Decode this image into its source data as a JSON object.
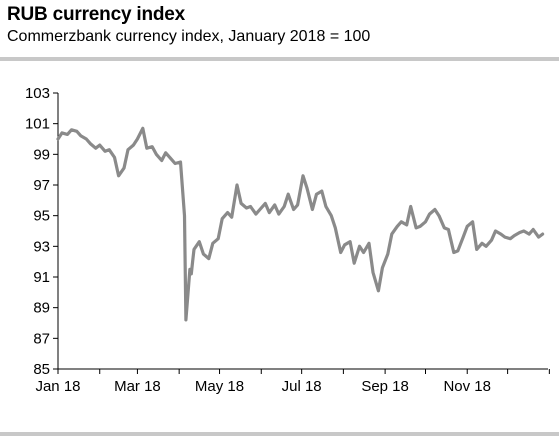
{
  "title": "RUB currency index",
  "subtitle": "Commerzbank currency index, January 2018 = 100",
  "chart_data": {
    "type": "line",
    "ylim": [
      85,
      103
    ],
    "yticks": [
      "85",
      "87",
      "89",
      "91",
      "93",
      "95",
      "97",
      "99",
      "101",
      "103"
    ],
    "xticks": [
      "Jan 18",
      "Mar 18",
      "May 18",
      "Jul 18",
      "Sep 18",
      "Nov 18"
    ],
    "line_color": "#8a8a8a",
    "grid": false,
    "series": [
      {
        "x": [
          "2018-01-01",
          "2018-01-04",
          "2018-01-08",
          "2018-01-11",
          "2018-01-15",
          "2018-01-18",
          "2018-01-22",
          "2018-01-25",
          "2018-01-29",
          "2018-02-01",
          "2018-02-05",
          "2018-02-08",
          "2018-02-12",
          "2018-02-15",
          "2018-02-19",
          "2018-02-22",
          "2018-02-26",
          "2018-03-01",
          "2018-03-05",
          "2018-03-08",
          "2018-03-12",
          "2018-03-15",
          "2018-03-19",
          "2018-03-22",
          "2018-03-26",
          "2018-03-29",
          "2018-04-02",
          "2018-04-05",
          "2018-04-06",
          "2018-04-09",
          "2018-04-10",
          "2018-04-11",
          "2018-04-12",
          "2018-04-16",
          "2018-04-19",
          "2018-04-23",
          "2018-04-26",
          "2018-04-30",
          "2018-05-03",
          "2018-05-07",
          "2018-05-10",
          "2018-05-14",
          "2018-05-17",
          "2018-05-21",
          "2018-05-24",
          "2018-05-28",
          "2018-05-31",
          "2018-06-04",
          "2018-06-07",
          "2018-06-11",
          "2018-06-14",
          "2018-06-18",
          "2018-06-21",
          "2018-06-25",
          "2018-06-28",
          "2018-07-02",
          "2018-07-05",
          "2018-07-09",
          "2018-07-12",
          "2018-07-16",
          "2018-07-19",
          "2018-07-23",
          "2018-07-26",
          "2018-07-30",
          "2018-08-02",
          "2018-08-06",
          "2018-08-09",
          "2018-08-13",
          "2018-08-16",
          "2018-08-20",
          "2018-08-23",
          "2018-08-27",
          "2018-08-30",
          "2018-09-03",
          "2018-09-06",
          "2018-09-10",
          "2018-09-13",
          "2018-09-17",
          "2018-09-20",
          "2018-09-24",
          "2018-09-27",
          "2018-10-01",
          "2018-10-04",
          "2018-10-08",
          "2018-10-11",
          "2018-10-15",
          "2018-10-18",
          "2018-10-22",
          "2018-10-25",
          "2018-10-29",
          "2018-11-01",
          "2018-11-05",
          "2018-11-08",
          "2018-11-12",
          "2018-11-15",
          "2018-11-19",
          "2018-11-22",
          "2018-11-26",
          "2018-11-29",
          "2018-12-03",
          "2018-12-06",
          "2018-12-10",
          "2018-12-13",
          "2018-12-17",
          "2018-12-20",
          "2018-12-24",
          "2018-12-27"
        ],
        "values": [
          100.0,
          100.4,
          100.3,
          100.6,
          100.5,
          100.2,
          100.0,
          99.7,
          99.4,
          99.6,
          99.2,
          99.3,
          98.8,
          97.6,
          98.1,
          99.3,
          99.6,
          100.0,
          100.7,
          99.4,
          99.5,
          99.0,
          98.6,
          99.1,
          98.7,
          98.4,
          98.5,
          95.0,
          88.2,
          91.5,
          91.2,
          92.0,
          92.8,
          93.3,
          92.5,
          92.2,
          93.2,
          93.5,
          94.8,
          95.2,
          94.9,
          97.0,
          95.8,
          95.5,
          95.6,
          95.1,
          95.4,
          95.8,
          95.2,
          95.7,
          95.1,
          95.6,
          96.4,
          95.4,
          95.7,
          97.6,
          96.8,
          95.4,
          96.4,
          96.6,
          95.6,
          95.0,
          94.2,
          92.6,
          93.1,
          93.3,
          91.9,
          93.0,
          92.6,
          93.2,
          91.3,
          90.1,
          91.6,
          92.5,
          93.8,
          94.3,
          94.6,
          94.4,
          95.6,
          94.2,
          94.3,
          94.6,
          95.1,
          95.4,
          95.0,
          94.2,
          94.1,
          92.6,
          92.7,
          93.6,
          94.3,
          94.6,
          92.8,
          93.2,
          93.0,
          93.4,
          94.0,
          93.8,
          93.6,
          93.5,
          93.7,
          93.9,
          94.0,
          93.8,
          94.1,
          93.6,
          93.8
        ]
      }
    ]
  }
}
